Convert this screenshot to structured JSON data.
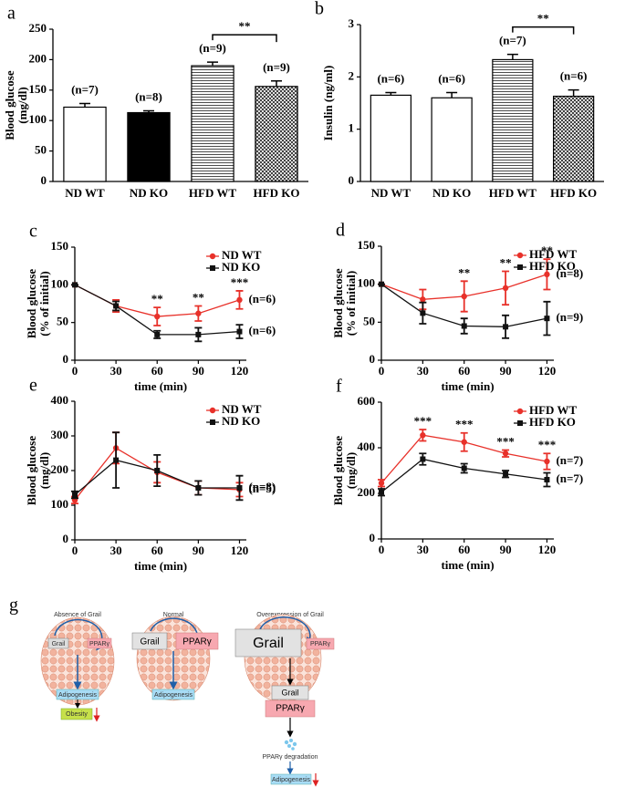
{
  "chart_data": [
    {
      "type": "bar",
      "panel": "a",
      "ylabel": [
        "Blood glucose",
        "(mg/dl)"
      ],
      "categories": [
        "ND WT",
        "ND KO",
        "HFD WT",
        "HFD KO"
      ],
      "values": [
        122,
        113,
        190,
        156
      ],
      "errors": [
        6,
        3,
        6,
        9
      ],
      "n_labels": [
        "(n=7)",
        "(n=8)",
        "(n=9)",
        "(n=9)"
      ],
      "patterns": [
        "white",
        "black",
        "horizontal-lines",
        "crosshatch"
      ],
      "brackets": [
        {
          "between": [
            "HFD WT",
            "HFD KO"
          ],
          "label": "**"
        }
      ],
      "ylim": [
        0,
        250
      ],
      "yticks": [
        0,
        50,
        100,
        150,
        200,
        250
      ]
    },
    {
      "type": "bar",
      "panel": "b",
      "ylabel": [
        "Insulin (ng/ml)"
      ],
      "categories": [
        "ND WT",
        "ND KO",
        "HFD WT",
        "HFD KO"
      ],
      "values": [
        1.65,
        1.6,
        2.33,
        1.63
      ],
      "errors": [
        0.05,
        0.1,
        0.1,
        0.12
      ],
      "n_labels": [
        "(n=6)",
        "(n=6)",
        "(n=7)",
        "(n=6)"
      ],
      "patterns": [
        "white",
        "white",
        "horizontal-lines",
        "crosshatch"
      ],
      "brackets": [
        {
          "between": [
            "HFD WT",
            "HFD KO"
          ],
          "label": "**"
        }
      ],
      "ylim": [
        0,
        3
      ],
      "yticks": [
        0,
        1,
        2,
        3
      ]
    },
    {
      "type": "line",
      "panel": "c",
      "ylabel": [
        "Blood glucose",
        "(% of initial)"
      ],
      "xlabel": "time (min)",
      "x": [
        0,
        30,
        60,
        90,
        120
      ],
      "series": [
        {
          "name": "ND WT",
          "color": "#e8312a",
          "marker": "circle",
          "values": [
            100,
            72,
            58,
            62,
            80
          ],
          "errors": [
            0,
            8,
            12,
            10,
            12
          ],
          "n_label": "(n=6)"
        },
        {
          "name": "ND KO",
          "color": "#111111",
          "marker": "square",
          "values": [
            100,
            72,
            34,
            34,
            38
          ],
          "errors": [
            0,
            6,
            5,
            9,
            9
          ],
          "n_label": "(n=6)"
        }
      ],
      "annotations": [
        {
          "x": 60,
          "label": "**"
        },
        {
          "x": 90,
          "label": "**"
        },
        {
          "x": 120,
          "label": "***"
        }
      ],
      "xlim": [
        0,
        125
      ],
      "xticks": [
        0,
        30,
        60,
        90,
        120
      ],
      "ylim": [
        0,
        150
      ],
      "yticks": [
        0,
        50,
        100,
        150
      ]
    },
    {
      "type": "line",
      "panel": "d",
      "ylabel": [
        "Blood glucose",
        "(% of initial)"
      ],
      "xlabel": "time (min)",
      "x": [
        0,
        30,
        60,
        90,
        120
      ],
      "series": [
        {
          "name": "HFD WT",
          "color": "#e8312a",
          "marker": "circle",
          "values": [
            100,
            80,
            84,
            95,
            113
          ],
          "errors": [
            0,
            13,
            20,
            22,
            20
          ],
          "n_label": "(n=8)"
        },
        {
          "name": "HFD KO",
          "color": "#111111",
          "marker": "square",
          "values": [
            100,
            62,
            45,
            44,
            55
          ],
          "errors": [
            0,
            14,
            10,
            15,
            22
          ],
          "n_label": "(n=9)"
        }
      ],
      "annotations": [
        {
          "x": 60,
          "label": "**"
        },
        {
          "x": 90,
          "label": "**"
        },
        {
          "x": 120,
          "label": "**"
        }
      ],
      "xlim": [
        0,
        125
      ],
      "xticks": [
        0,
        30,
        60,
        90,
        120
      ],
      "ylim": [
        0,
        150
      ],
      "yticks": [
        0,
        50,
        100,
        150
      ]
    },
    {
      "type": "line",
      "panel": "e",
      "ylabel": [
        "Blood glucose",
        "(mg/dl)"
      ],
      "xlabel": "time (min)",
      "x": [
        0,
        30,
        60,
        90,
        120
      ],
      "series": [
        {
          "name": "ND WT",
          "color": "#e8312a",
          "marker": "circle",
          "values": [
            115,
            265,
            195,
            150,
            145
          ],
          "errors": [
            10,
            45,
            30,
            20,
            20
          ],
          "n_label": "(n=5)"
        },
        {
          "name": "ND KO",
          "color": "#111111",
          "marker": "square",
          "values": [
            130,
            230,
            200,
            150,
            150
          ],
          "errors": [
            10,
            80,
            45,
            20,
            35
          ],
          "n_label": "(n=8)"
        }
      ],
      "annotations": [],
      "xlim": [
        0,
        125
      ],
      "xticks": [
        0,
        30,
        60,
        90,
        120
      ],
      "ylim": [
        0,
        400
      ],
      "yticks": [
        0,
        100,
        200,
        300,
        400
      ]
    },
    {
      "type": "line",
      "panel": "f",
      "ylabel": [
        "Blood glucose",
        "(mg/dl)"
      ],
      "xlabel": "time (min)",
      "x": [
        0,
        30,
        60,
        90,
        120
      ],
      "series": [
        {
          "name": "HFD WT",
          "color": "#e8312a",
          "marker": "circle",
          "values": [
            245,
            455,
            425,
            375,
            340
          ],
          "errors": [
            15,
            25,
            40,
            15,
            35
          ],
          "n_label": "(n=7)"
        },
        {
          "name": "HFD KO",
          "color": "#111111",
          "marker": "square",
          "values": [
            205,
            350,
            310,
            285,
            260
          ],
          "errors": [
            15,
            25,
            20,
            15,
            30
          ],
          "n_label": "(n=7)"
        }
      ],
      "annotations": [
        {
          "x": 30,
          "label": "***"
        },
        {
          "x": 60,
          "label": "***"
        },
        {
          "x": 90,
          "label": "***"
        },
        {
          "x": 120,
          "label": "***"
        }
      ],
      "xlim": [
        0,
        125
      ],
      "xticks": [
        0,
        30,
        60,
        90,
        120
      ],
      "ylim": [
        0,
        600
      ],
      "yticks": [
        0,
        200,
        400,
        600
      ]
    }
  ],
  "diagram": {
    "panel": "g",
    "absence": {
      "title": "Absence of Grail",
      "grail": "Grail",
      "ppar": "PPARγ",
      "outcome": "Adipogenesis",
      "result": "Obesity"
    },
    "normal": {
      "title": "Normal",
      "grail": "Grail",
      "ppar": "PPARγ",
      "outcome": "Adipogenesis"
    },
    "overexpression": {
      "title": "Overexpression of Grail",
      "grail": "Grail",
      "ppar": "PPARγ",
      "complex_grail": "Grail",
      "complex_ppar": "PPARγ",
      "degradation": "PPARγ degradation",
      "outcome": "Adipogenesis"
    }
  }
}
